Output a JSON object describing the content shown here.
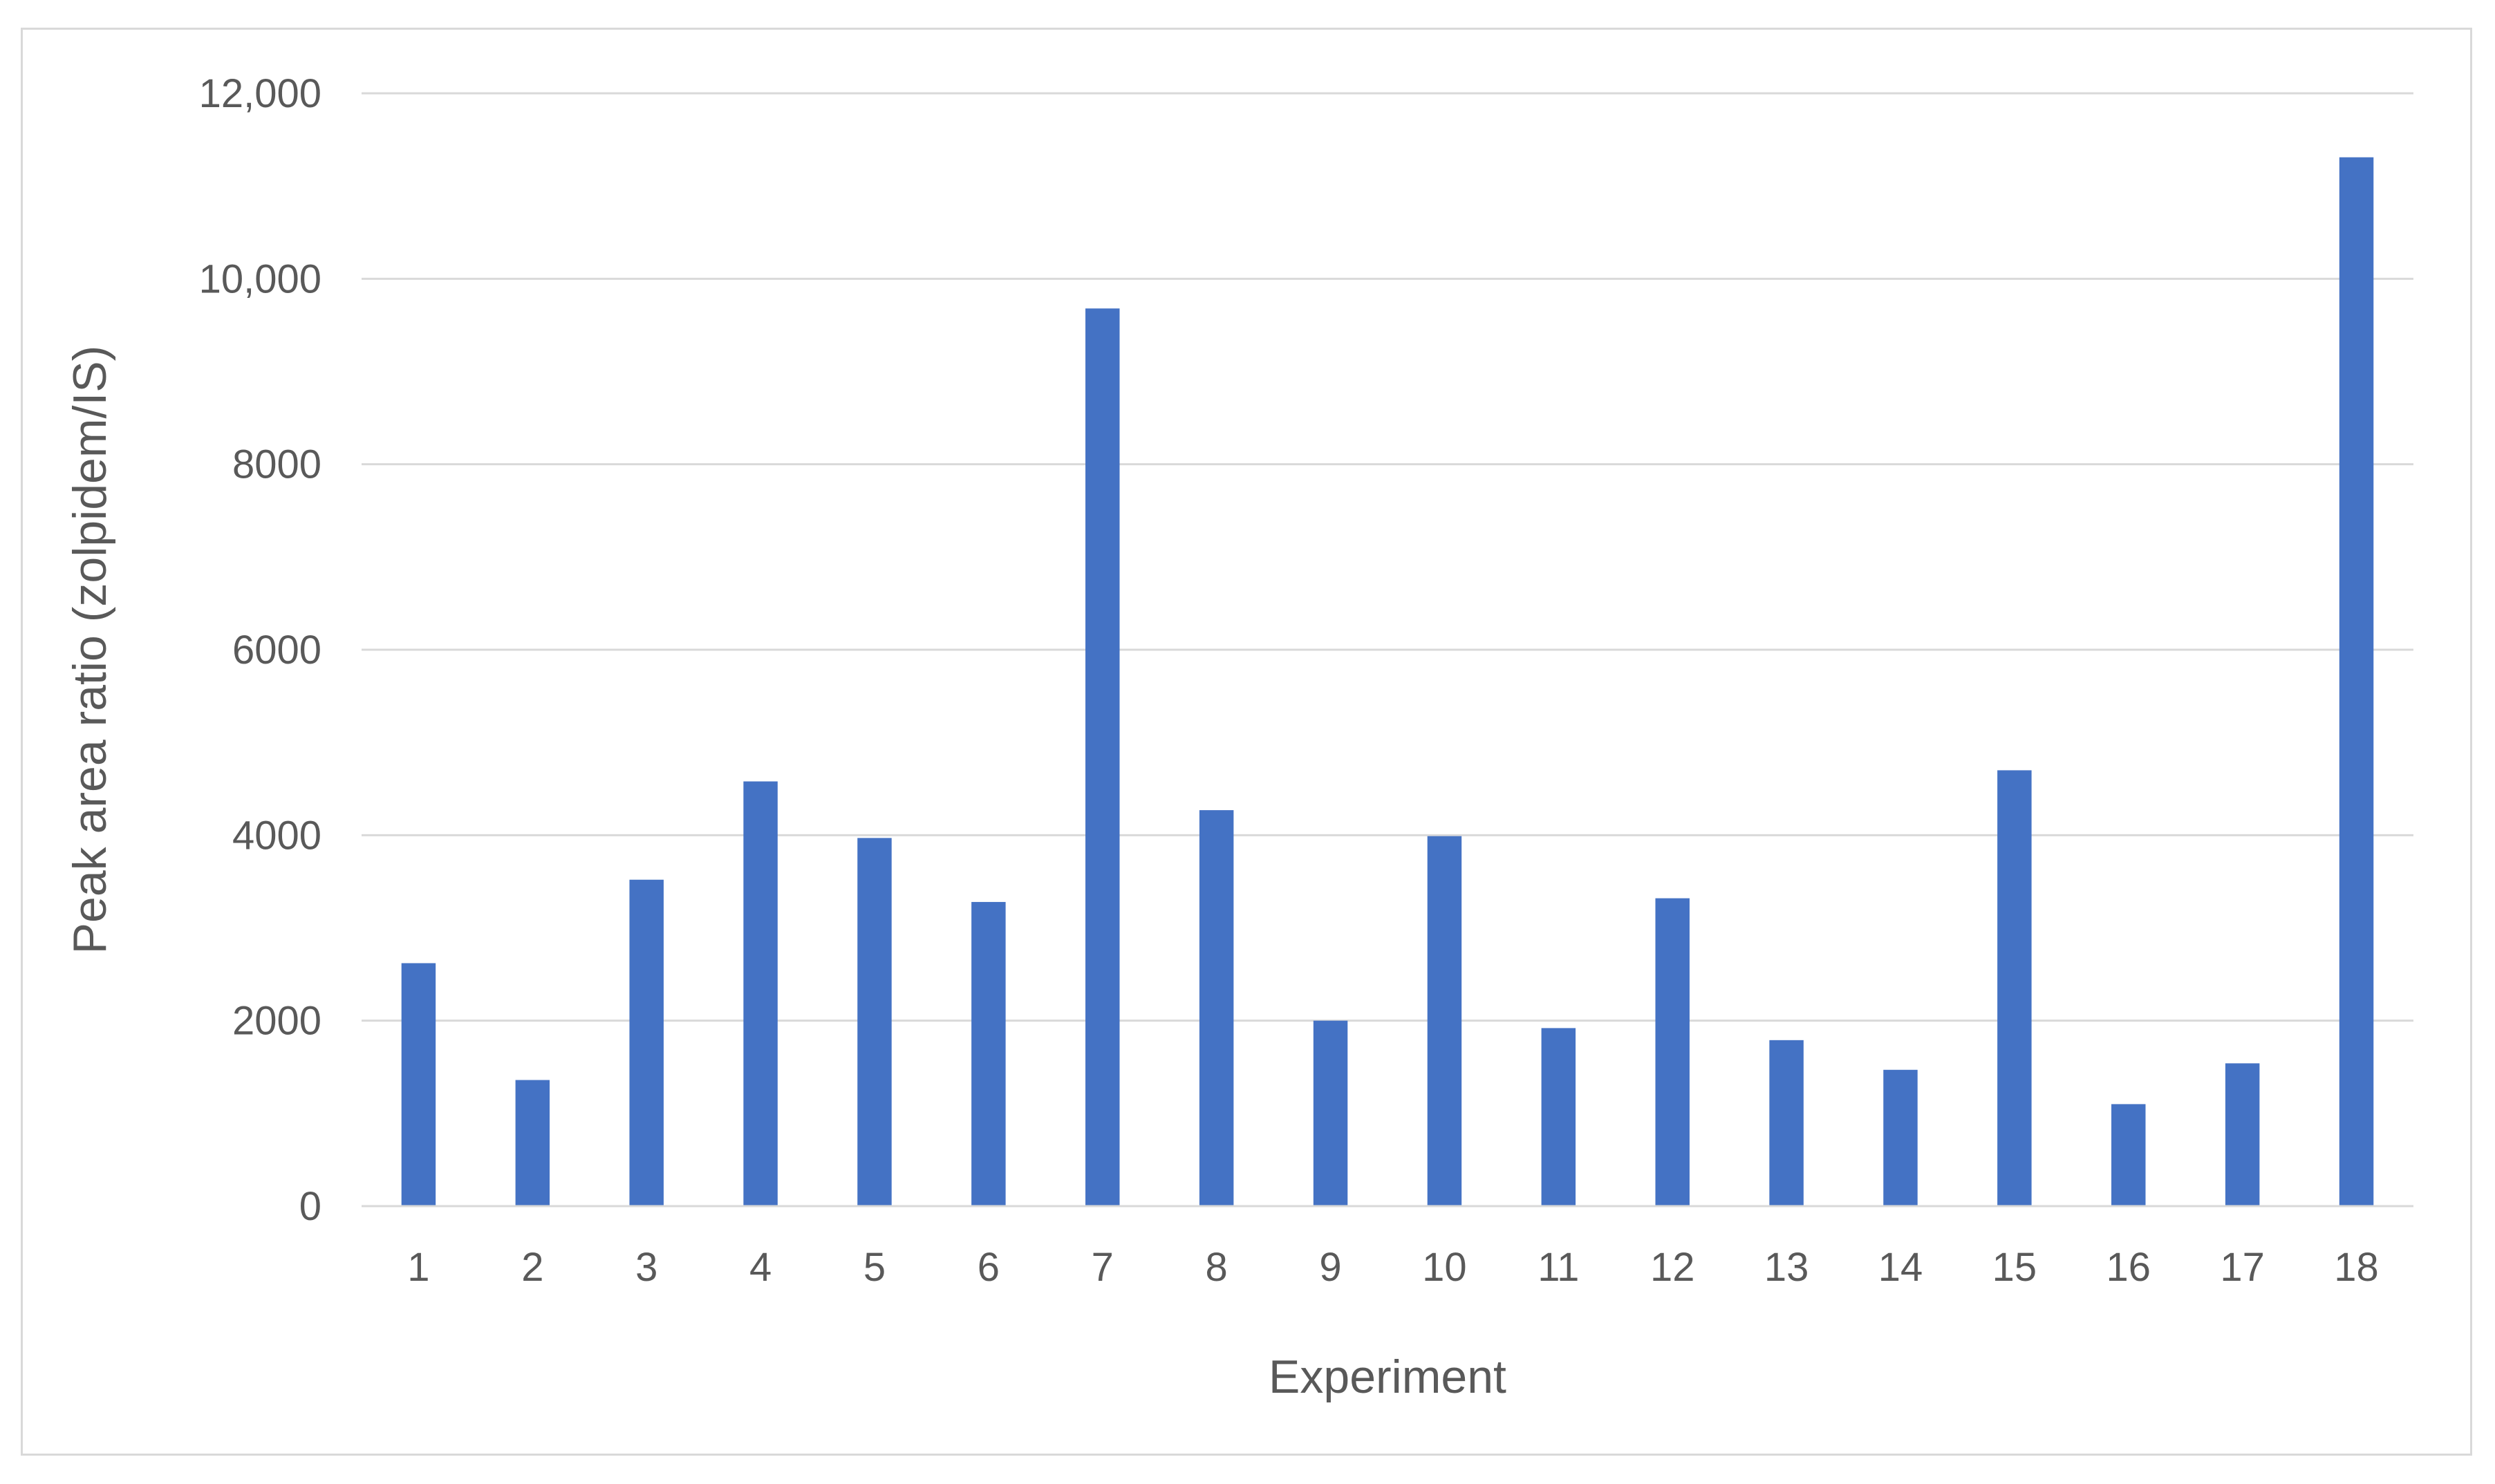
{
  "chart_data": {
    "type": "bar",
    "title": "",
    "xlabel": "Experiment",
    "ylabel": "Peak area ratio (zolpidem/IS)",
    "categories": [
      "1",
      "2",
      "3",
      "4",
      "5",
      "6",
      "7",
      "8",
      "9",
      "10",
      "11",
      "12",
      "13",
      "14",
      "15",
      "16",
      "17",
      "18"
    ],
    "values": [
      2620,
      1360,
      3520,
      4580,
      3970,
      3280,
      9680,
      4270,
      2000,
      3990,
      1920,
      3320,
      1790,
      1470,
      4700,
      1100,
      1540,
      11310
    ],
    "ylim": [
      0,
      12000
    ],
    "yticks": [
      "0",
      "2000",
      "4000",
      "6000",
      "8000",
      "10,000",
      "12,000"
    ],
    "grid": true,
    "legend": "none",
    "bar_color": "#4472c4",
    "grid_color": "#d9d9d9",
    "axis_color": "#d9d9d9",
    "text_color": "#595959"
  }
}
